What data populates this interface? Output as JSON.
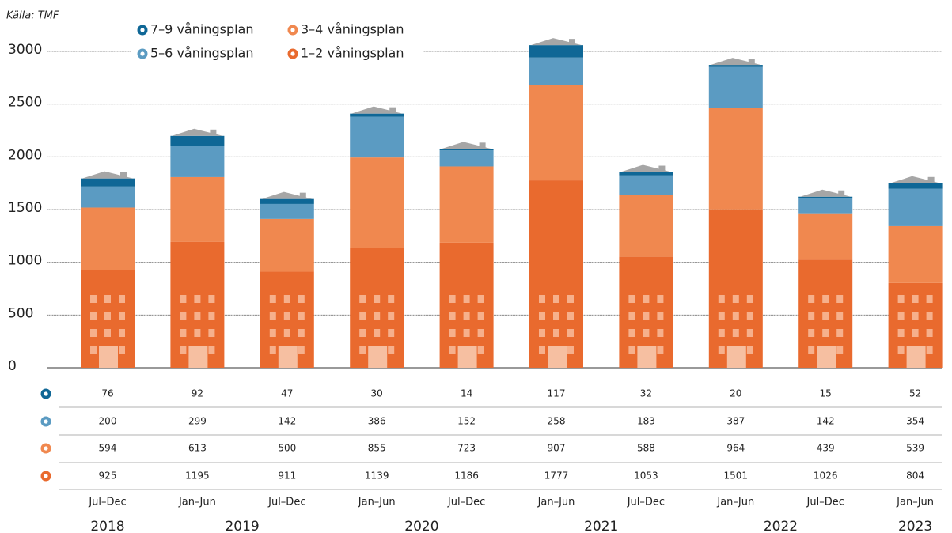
{
  "chart_data": {
    "type": "bar",
    "stacked": true,
    "source": "Källa: TMF",
    "categories": [
      "Jul–Dec",
      "Jan–Jun",
      "Jul–Dec",
      "Jan–Jun",
      "Jul–Dec",
      "Jan–Jun",
      "Jul–Dec",
      "Jan–Jun",
      "Jul–Dec",
      "Jan–Jun"
    ],
    "years": [
      "2018",
      "2019",
      "2020",
      "2021",
      "2022",
      "2023"
    ],
    "series": [
      {
        "name": "1–2 våningsplan",
        "color": "#e96a2e",
        "values": [
          925,
          1195,
          911,
          1139,
          1186,
          1777,
          1053,
          1501,
          1026,
          804
        ]
      },
      {
        "name": "3–4 våningsplan",
        "color": "#f0884f",
        "values": [
          594,
          613,
          500,
          855,
          723,
          907,
          588,
          964,
          439,
          539
        ]
      },
      {
        "name": "5–6 våningsplan",
        "color": "#5b9bc2",
        "values": [
          200,
          299,
          142,
          386,
          152,
          258,
          183,
          387,
          142,
          354
        ]
      },
      {
        "name": "7–9 våningsplan",
        "color": "#0f6796",
        "values": [
          76,
          92,
          47,
          30,
          14,
          117,
          32,
          20,
          15,
          52
        ]
      }
    ],
    "ylim": [
      0,
      3000
    ],
    "yticks": [
      0,
      500,
      1000,
      1500,
      2000,
      2500,
      3000
    ],
    "grid": true
  }
}
